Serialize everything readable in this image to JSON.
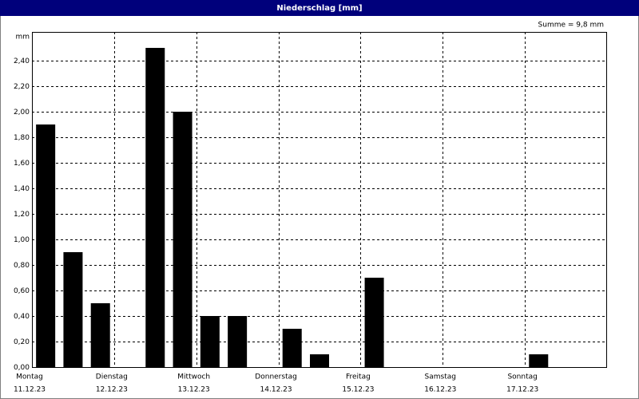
{
  "chart_data": {
    "type": "bar",
    "title": "Niederschlag [mm]",
    "annotation": "Summe = 9,8 mm",
    "y_unit": "mm",
    "days": [
      {
        "name": "Montag",
        "date": "11.12.23"
      },
      {
        "name": "Dienstag",
        "date": "12.12.23"
      },
      {
        "name": "Mittwoch",
        "date": "13.12.23"
      },
      {
        "name": "Donnerstag",
        "date": "14.12.23"
      },
      {
        "name": "Freitag",
        "date": "15.12.23"
      },
      {
        "name": "Samstag",
        "date": "16.12.23"
      },
      {
        "name": "Sonntag",
        "date": "17.12.23"
      }
    ],
    "values": [
      1.9,
      0.9,
      0.5,
      0,
      2.5,
      2.0,
      0.4,
      0.4,
      0,
      0.3,
      0.1,
      0,
      0.7,
      0,
      0,
      0,
      0,
      0,
      0.1,
      0,
      0
    ],
    "color": "#000000",
    "ylim": [
      0,
      2.625
    ],
    "yticks": [
      {
        "value": 0,
        "label": "0,00"
      },
      {
        "value": 0.2,
        "label": "0,20"
      },
      {
        "value": 0.4,
        "label": "0,40"
      },
      {
        "value": 0.6,
        "label": "0,60"
      },
      {
        "value": 0.8,
        "label": "0,80"
      },
      {
        "value": 1.0,
        "label": "1,00"
      },
      {
        "value": 1.2,
        "label": "1,20"
      },
      {
        "value": 1.4,
        "label": "1,40"
      },
      {
        "value": 1.6,
        "label": "1,60"
      },
      {
        "value": 1.8,
        "label": "1,80"
      },
      {
        "value": 2.0,
        "label": "2,00"
      },
      {
        "value": 2.2,
        "label": "2,20"
      },
      {
        "value": 2.4,
        "label": "2,40"
      }
    ],
    "grid": true
  }
}
